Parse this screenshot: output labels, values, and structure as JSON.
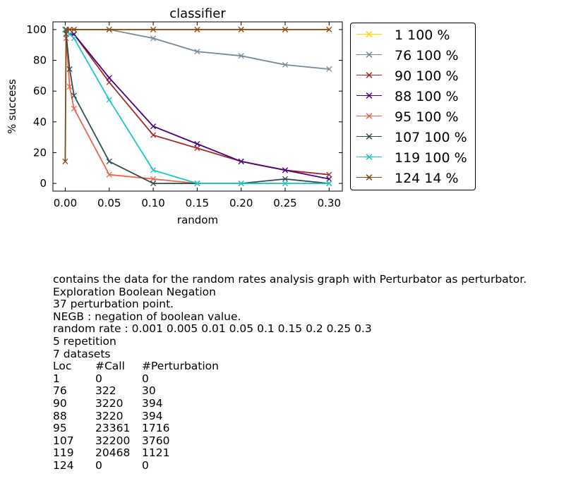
{
  "chart_data": {
    "type": "line",
    "title": "classifier",
    "xlabel": "random",
    "ylabel": "% success",
    "xlim": [
      -0.014,
      0.315
    ],
    "ylim": [
      -5,
      105
    ],
    "x_ticks": [
      0.0,
      0.05,
      0.1,
      0.15,
      0.2,
      0.25,
      0.3
    ],
    "x_tick_labels": [
      "0.00",
      "0.05",
      "0.10",
      "0.15",
      "0.20",
      "0.25",
      "0.30"
    ],
    "y_ticks": [
      0,
      20,
      40,
      60,
      80,
      100
    ],
    "y_tick_labels": [
      "0",
      "20",
      "40",
      "60",
      "80",
      "100"
    ],
    "legend_position": "outside-right",
    "x": [
      0,
      0.001,
      0.005,
      0.01,
      0.05,
      0.1,
      0.15,
      0.2,
      0.25,
      0.3
    ],
    "series": [
      {
        "name": "1 100 %",
        "color": "#FFD700",
        "values": [
          100,
          100,
          100,
          100,
          100,
          100,
          100,
          100,
          100,
          100
        ]
      },
      {
        "name": "76 100 %",
        "color": "#778899",
        "values": [
          100,
          100,
          100,
          100,
          100,
          94.3,
          85.7,
          82.9,
          77.1,
          74.3
        ]
      },
      {
        "name": "90 100 %",
        "color": "#A52A2A",
        "values": [
          100,
          100,
          97,
          97,
          65.7,
          31.4,
          22.9,
          14.3,
          8.6,
          5.7
        ]
      },
      {
        "name": "88 100 %",
        "color": "#4B0082",
        "values": [
          100,
          100,
          97,
          97,
          68.6,
          37.1,
          25.7,
          14.3,
          8.6,
          2.9
        ]
      },
      {
        "name": "95 100 %",
        "color": "#E9654E",
        "values": [
          100,
          94.3,
          62.9,
          48.6,
          5.7,
          2.9,
          0,
          0,
          0,
          0
        ]
      },
      {
        "name": "107 100 %",
        "color": "#2F4F4F",
        "values": [
          100,
          97.1,
          74.3,
          57.1,
          14.3,
          0,
          0,
          0,
          2.9,
          0
        ]
      },
      {
        "name": "119 100 %",
        "color": "#17C8C8",
        "values": [
          100,
          100,
          97.1,
          94.3,
          54.3,
          8.6,
          0,
          0,
          0,
          0
        ]
      },
      {
        "name": "124 14 %",
        "color": "#8B4513",
        "values": [
          14.3,
          100,
          100,
          100,
          100,
          100,
          100,
          100,
          100,
          100
        ]
      }
    ]
  },
  "notes": {
    "lines": [
      "contains the data for the random rates analysis graph with Perturbator as perturbator.",
      "Exploration Boolean Negation",
      "37 perturbation point.",
      "NEGB : negation of boolean value.",
      "random rate : 0.001 0.005 0.01 0.05 0.1 0.15 0.2 0.25 0.3",
      "5 repetition",
      "7 datasets"
    ],
    "table": {
      "headers": [
        "Loc",
        "#Call",
        "#Perturbation"
      ],
      "rows": [
        [
          "1",
          "0",
          "0"
        ],
        [
          "76",
          "322",
          "30"
        ],
        [
          "90",
          "3220",
          "394"
        ],
        [
          "88",
          "3220",
          "394"
        ],
        [
          "95",
          "23361",
          "1716"
        ],
        [
          "107",
          "32200",
          "3760"
        ],
        [
          "119",
          "20468",
          "1121"
        ],
        [
          "124",
          "0",
          "0"
        ]
      ]
    }
  }
}
